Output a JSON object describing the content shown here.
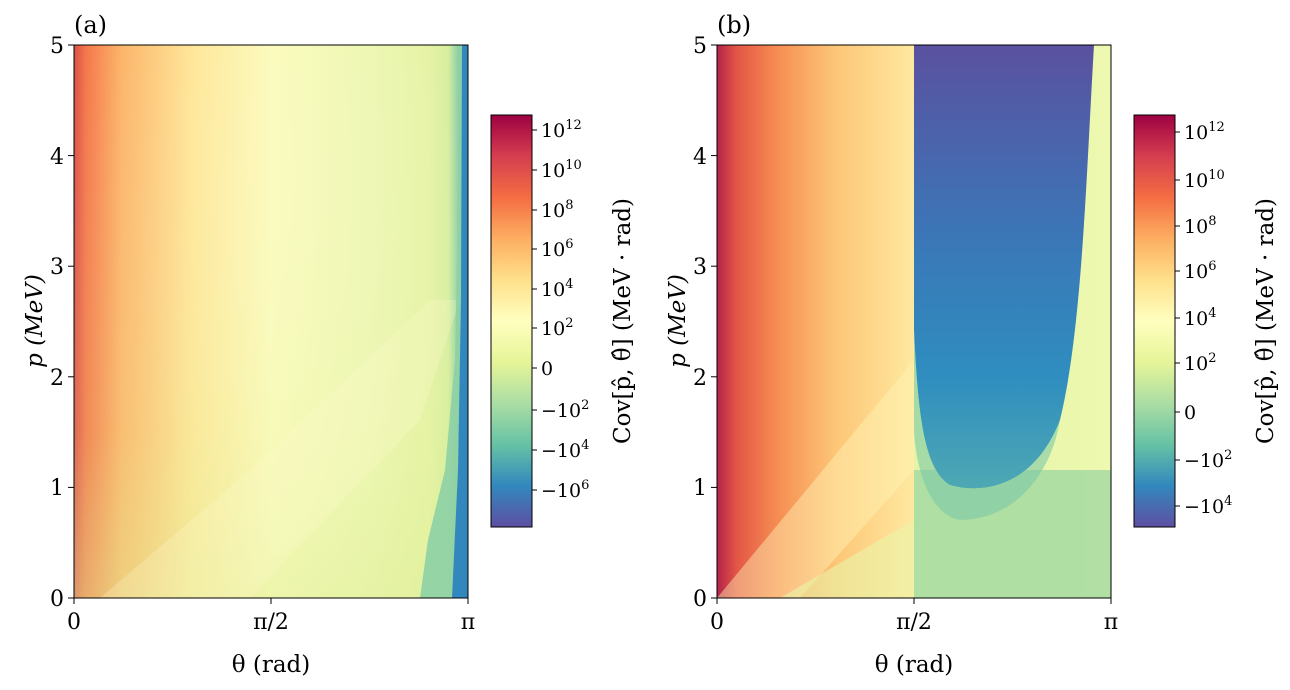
{
  "chart_data": [
    {
      "type": "heatmap",
      "panel_label": "(a)",
      "xlabel": "θ (rad)",
      "ylabel": "p (MeV)",
      "x_ticks": [
        "0",
        "π/2",
        "π"
      ],
      "x_range": [
        0,
        3.1416
      ],
      "y_ticks": [
        "0",
        "1",
        "2",
        "3",
        "4",
        "5"
      ],
      "y_range": [
        0,
        5
      ],
      "colorbar": {
        "label": "Cov[p̂, θ̂] (MeV · rad)",
        "colormap": "Spectral_r",
        "scale": "symlog",
        "ticks": [
          "10^12",
          "10^10",
          "10^8",
          "10^6",
          "10^4",
          "10^2",
          "0",
          "−10^2",
          "−10^4",
          "−10^6"
        ],
        "range": [
          "−10^7",
          "10^13"
        ]
      }
    },
    {
      "type": "heatmap",
      "panel_label": "(b)",
      "xlabel": "θ (rad)",
      "ylabel": "p (MeV)",
      "x_ticks": [
        "0",
        "π/2",
        "π"
      ],
      "x_range": [
        0,
        3.1416
      ],
      "y_ticks": [
        "0",
        "1",
        "2",
        "3",
        "4",
        "5"
      ],
      "y_range": [
        0,
        5
      ],
      "colorbar": {
        "label": "Cov[p̂, θ̂] (MeV · rad)",
        "colormap": "Spectral_r",
        "scale": "symlog",
        "ticks": [
          "10^12",
          "10^10",
          "10^8",
          "10^6",
          "10^4",
          "10^2",
          "0",
          "−10^2",
          "−10^4"
        ],
        "range": [
          "−10^5",
          "10^13"
        ]
      }
    }
  ]
}
